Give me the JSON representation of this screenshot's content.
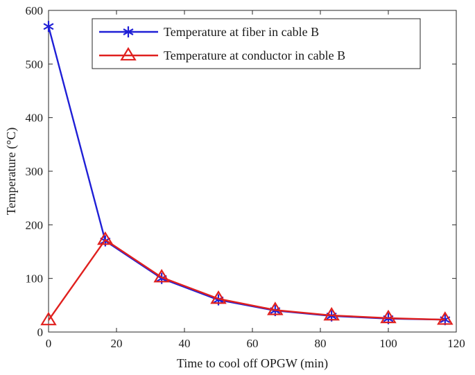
{
  "chart_data": {
    "type": "line",
    "title": "",
    "xlabel": "Time to cool off OPGW (min)",
    "ylabel": "Temperature (°C)",
    "xlim": [
      0,
      120
    ],
    "ylim": [
      0,
      600
    ],
    "xticks": [
      0,
      20,
      40,
      60,
      80,
      100,
      120
    ],
    "yticks": [
      0,
      100,
      200,
      300,
      400,
      500,
      600
    ],
    "legend_position": "top-right",
    "grid": false,
    "series": [
      {
        "name": "Temperature at fiber in cable B",
        "color": "#1f1fd6",
        "marker": "asterisk",
        "x": [
          0,
          16.7,
          33.3,
          50,
          66.7,
          83.3,
          100,
          116.7
        ],
        "y": [
          570,
          170,
          100,
          60,
          40,
          30,
          25,
          23
        ]
      },
      {
        "name": "Temperature at conductor in cable B",
        "color": "#e0201e",
        "marker": "triangle",
        "x": [
          0,
          16.7,
          33.3,
          50,
          66.7,
          83.3,
          100,
          116.7
        ],
        "y": [
          22,
          172,
          102,
          62,
          41,
          31,
          26,
          23
        ]
      }
    ]
  }
}
